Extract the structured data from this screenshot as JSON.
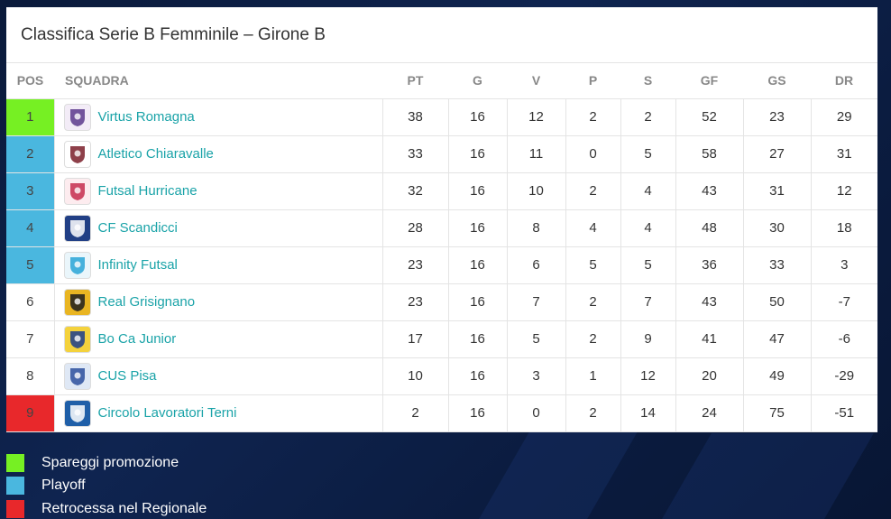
{
  "title": "Classifica Serie B Femminile – Girone B",
  "columns": [
    "POS",
    "SQUADRA",
    "PT",
    "G",
    "V",
    "P",
    "S",
    "GF",
    "GS",
    "DR"
  ],
  "colors": {
    "promo": "#76f023",
    "playoff": "#4ab7df",
    "relegation": "#e8282b",
    "team_link": "#1aa3a8"
  },
  "rows": [
    {
      "pos": "1",
      "team": "Virtus Romagna",
      "pt": "38",
      "g": "16",
      "v": "12",
      "p": "2",
      "s": "2",
      "gf": "52",
      "gs": "23",
      "dr": "29",
      "zone": "promo",
      "logo_icon": "virtus-romagna-crest-icon"
    },
    {
      "pos": "2",
      "team": "Atletico Chiaravalle",
      "pt": "33",
      "g": "16",
      "v": "11",
      "p": "0",
      "s": "5",
      "gf": "58",
      "gs": "27",
      "dr": "31",
      "zone": "playoff",
      "logo_icon": "atletico-chiaravalle-crest-icon"
    },
    {
      "pos": "3",
      "team": "Futsal Hurricane",
      "pt": "32",
      "g": "16",
      "v": "10",
      "p": "2",
      "s": "4",
      "gf": "43",
      "gs": "31",
      "dr": "12",
      "zone": "playoff",
      "logo_icon": "futsal-hurricane-crest-icon"
    },
    {
      "pos": "4",
      "team": "CF Scandicci",
      "pt": "28",
      "g": "16",
      "v": "8",
      "p": "4",
      "s": "4",
      "gf": "48",
      "gs": "30",
      "dr": "18",
      "zone": "playoff",
      "logo_icon": "cf-scandicci-crest-icon"
    },
    {
      "pos": "5",
      "team": "Infinity Futsal",
      "pt": "23",
      "g": "16",
      "v": "6",
      "p": "5",
      "s": "5",
      "gf": "36",
      "gs": "33",
      "dr": "3",
      "zone": "playoff",
      "logo_icon": "infinity-futsal-crest-icon"
    },
    {
      "pos": "6",
      "team": "Real Grisignano",
      "pt": "23",
      "g": "16",
      "v": "7",
      "p": "2",
      "s": "7",
      "gf": "43",
      "gs": "50",
      "dr": "-7",
      "zone": "",
      "logo_icon": "real-grisignano-crest-icon"
    },
    {
      "pos": "7",
      "team": "Bo Ca Junior",
      "pt": "17",
      "g": "16",
      "v": "5",
      "p": "2",
      "s": "9",
      "gf": "41",
      "gs": "47",
      "dr": "-6",
      "zone": "",
      "logo_icon": "bo-ca-junior-crest-icon"
    },
    {
      "pos": "8",
      "team": "CUS Pisa",
      "pt": "10",
      "g": "16",
      "v": "3",
      "p": "1",
      "s": "12",
      "gf": "20",
      "gs": "49",
      "dr": "-29",
      "zone": "",
      "logo_icon": "cus-pisa-crest-icon"
    },
    {
      "pos": "9",
      "team": "Circolo Lavoratori Terni",
      "pt": "2",
      "g": "16",
      "v": "0",
      "p": "2",
      "s": "14",
      "gf": "24",
      "gs": "75",
      "dr": "-51",
      "zone": "relegation",
      "logo_icon": "circolo-lavoratori-terni-crest-icon"
    }
  ],
  "legend": [
    {
      "label": "Spareggi promozione",
      "zone": "promo"
    },
    {
      "label": "Playoff",
      "zone": "playoff"
    },
    {
      "label": "Retrocessa nel Regionale",
      "zone": "relegation"
    }
  ]
}
